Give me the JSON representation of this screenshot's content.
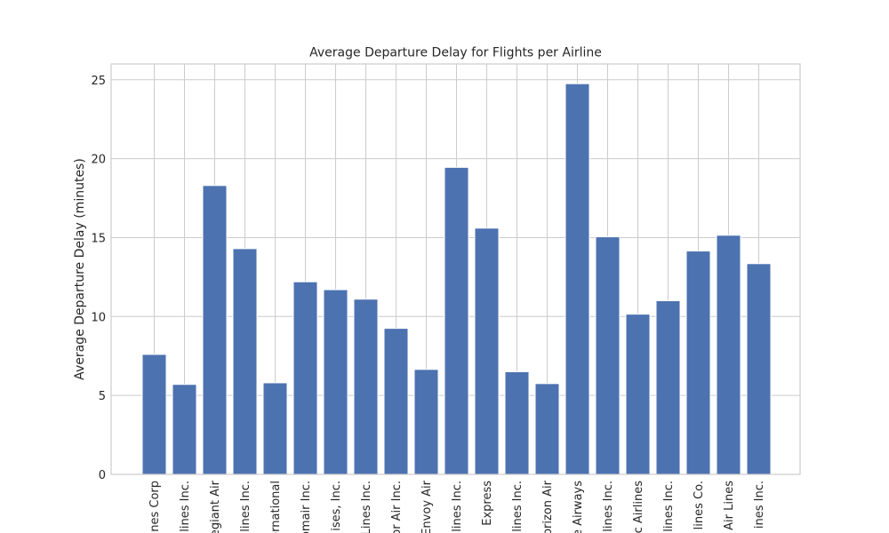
{
  "chart_data": {
    "type": "bar",
    "title": "Average Departure Delay for Flights per Airline",
    "xlabel": "",
    "ylabel": "Average Departure Delay (minutes)",
    "ylim": [
      0,
      26
    ],
    "yticks": [
      0,
      5,
      10,
      15,
      20,
      25
    ],
    "grid": true,
    "bar_color": "#4c72b0",
    "categories": [
      "nes Corp",
      "lines Inc.",
      "egiant Air",
      "lines Inc.",
      "ernational",
      "omair Inc.",
      "ises, Inc.",
      "Lines Inc.",
      "or Air Inc.",
      "Envoy Air",
      "lines Inc.",
      "Express",
      "lines Inc.",
      "orizon Air",
      "e Airways",
      "lines Inc.",
      "c Airlines",
      "lines Inc.",
      "lines Co.",
      "Air Lines",
      "ines Inc."
    ],
    "values": [
      7.6,
      5.7,
      18.3,
      14.3,
      5.8,
      12.2,
      11.7,
      11.1,
      9.25,
      6.65,
      19.45,
      15.6,
      6.5,
      5.75,
      24.75,
      15.05,
      10.15,
      11.0,
      14.15,
      15.15,
      13.35
    ]
  }
}
